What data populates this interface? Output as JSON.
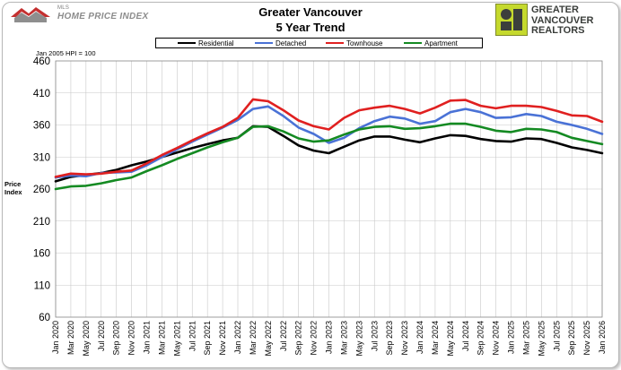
{
  "header": {
    "left_logo_small": "MLS",
    "left_logo_text": "HOME PRICE INDEX",
    "title_line1": "Greater Vancouver",
    "title_line2": "5 Year Trend",
    "right_logo_line1": "GREATER",
    "right_logo_line2": "VANCOUVER",
    "right_logo_line3": "REALTORS"
  },
  "base_note": "Jan 2005 HPI = 100",
  "colors": {
    "Residential": "#000000",
    "Detached": "#4a72d6",
    "Townhouse": "#e02020",
    "Apartment": "#148a22",
    "gridline": "#c8c8c8",
    "logo_green": "#c5d92d"
  },
  "chart_data": {
    "type": "line",
    "title": "Greater Vancouver 5 Year Trend",
    "xlabel": "",
    "ylabel": "Price Index",
    "ylim": [
      60,
      460
    ],
    "yticks": [
      60,
      110,
      160,
      210,
      260,
      310,
      360,
      410,
      460
    ],
    "grid": true,
    "legend_position": "top",
    "x": [
      "Jan 2020",
      "Mar 2020",
      "May 2020",
      "Jul 2020",
      "Sep 2020",
      "Nov 2020",
      "Jan 2021",
      "Mar 2021",
      "May 2021",
      "Jul 2021",
      "Sep 2021",
      "Nov 2021",
      "Jan 2022",
      "Mar 2022",
      "May 2022",
      "Jul 2022",
      "Sep 2022",
      "Nov 2022",
      "Jan 2023",
      "Mar 2023",
      "May 2023",
      "Jul 2023",
      "Sep 2023",
      "Nov 2023",
      "Jan 2024",
      "Mar 2024",
      "May 2024",
      "Jul 2024",
      "Sep 2024",
      "Nov 2024",
      "Jan 2025",
      "Mar 2025",
      "May 2025",
      "Jul 2025",
      "Sep 2025",
      "Nov 2025",
      "Jan 2026"
    ],
    "series": [
      {
        "name": "Residential",
        "values": [
          272,
          279,
          282,
          285,
          290,
          297,
          303,
          310,
          317,
          324,
          330,
          336,
          340,
          358,
          357,
          343,
          328,
          320,
          316,
          326,
          336,
          342,
          342,
          337,
          333,
          339,
          344,
          343,
          338,
          335,
          334,
          339,
          338,
          332,
          325,
          321,
          316
        ]
      },
      {
        "name": "Detached",
        "values": [
          278,
          281,
          280,
          285,
          286,
          287,
          297,
          310,
          322,
          334,
          345,
          356,
          368,
          385,
          389,
          374,
          356,
          346,
          332,
          340,
          355,
          366,
          373,
          370,
          362,
          366,
          380,
          385,
          380,
          371,
          372,
          377,
          374,
          365,
          360,
          354,
          346
        ]
      },
      {
        "name": "Townhouse",
        "values": [
          279,
          284,
          283,
          284,
          287,
          289,
          300,
          313,
          324,
          336,
          347,
          357,
          371,
          400,
          397,
          383,
          367,
          358,
          353,
          371,
          383,
          387,
          390,
          385,
          378,
          387,
          398,
          399,
          390,
          386,
          390,
          390,
          388,
          382,
          375,
          374,
          365
        ]
      },
      {
        "name": "Apartment",
        "values": [
          260,
          264,
          265,
          269,
          274,
          278,
          288,
          297,
          307,
          316,
          325,
          333,
          340,
          357,
          358,
          350,
          339,
          334,
          336,
          345,
          353,
          357,
          358,
          354,
          355,
          358,
          362,
          362,
          357,
          351,
          349,
          354,
          353,
          349,
          340,
          335,
          330
        ]
      }
    ]
  }
}
